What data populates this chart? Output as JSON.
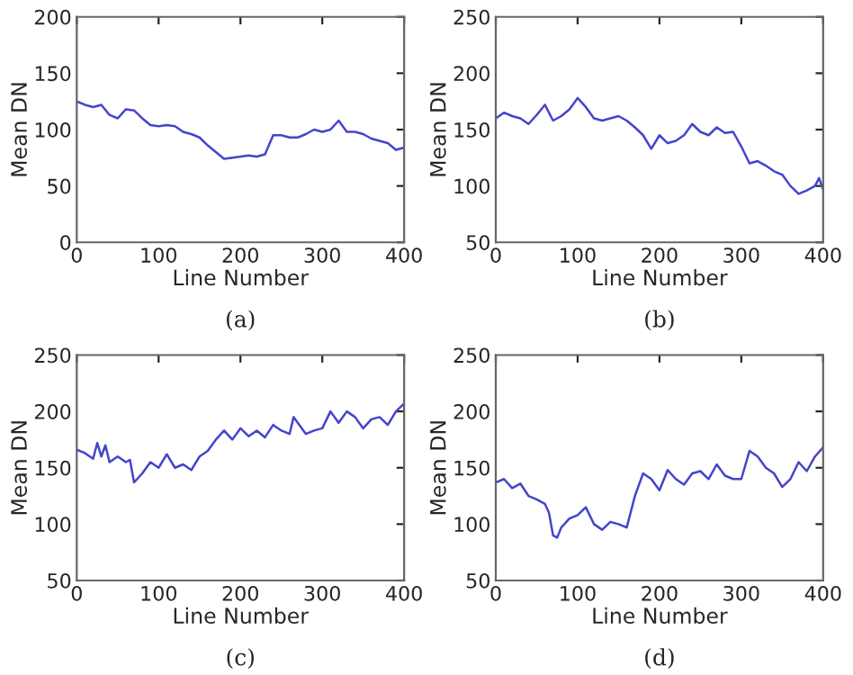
{
  "chart_data": [
    {
      "type": "line",
      "xlabel": "Line Number",
      "ylabel": "Mean DN",
      "annotations": [
        "(a)"
      ],
      "xlim": [
        0,
        400
      ],
      "xticks": [
        0,
        100,
        200,
        300,
        400
      ],
      "ylim": [
        0,
        200
      ],
      "yticks": [
        0,
        50,
        100,
        150,
        200
      ],
      "grid": false,
      "series": [
        {
          "color": "#4444cc",
          "x": [
            0,
            10,
            20,
            30,
            40,
            50,
            60,
            70,
            80,
            90,
            100,
            110,
            120,
            130,
            140,
            150,
            160,
            170,
            180,
            190,
            200,
            210,
            220,
            230,
            240,
            250,
            260,
            270,
            280,
            290,
            300,
            310,
            320,
            330,
            340,
            350,
            360,
            370,
            380,
            390,
            400
          ],
          "values": [
            125,
            122,
            120,
            122,
            113,
            110,
            118,
            117,
            110,
            104,
            103,
            104,
            103,
            98,
            96,
            93,
            86,
            80,
            74,
            75,
            76,
            77,
            76,
            78,
            95,
            95,
            93,
            93,
            96,
            100,
            98,
            100,
            108,
            98,
            98,
            96,
            92,
            90,
            88,
            82,
            84
          ]
        }
      ]
    },
    {
      "type": "line",
      "xlabel": "Line Number",
      "ylabel": "Mean DN",
      "annotations": [
        "(b)"
      ],
      "xlim": [
        0,
        400
      ],
      "xticks": [
        0,
        100,
        200,
        300,
        400
      ],
      "ylim": [
        50,
        250
      ],
      "yticks": [
        50,
        100,
        150,
        200,
        250
      ],
      "grid": false,
      "series": [
        {
          "color": "#4444cc",
          "x": [
            0,
            10,
            20,
            30,
            40,
            50,
            60,
            70,
            80,
            90,
            100,
            110,
            120,
            130,
            140,
            150,
            160,
            170,
            180,
            190,
            200,
            210,
            220,
            230,
            240,
            250,
            260,
            270,
            280,
            290,
            300,
            310,
            320,
            330,
            340,
            350,
            360,
            370,
            380,
            390,
            395,
            400
          ],
          "values": [
            160,
            165,
            162,
            160,
            155,
            163,
            172,
            158,
            162,
            168,
            178,
            170,
            160,
            158,
            160,
            162,
            158,
            152,
            145,
            133,
            145,
            138,
            140,
            145,
            155,
            148,
            145,
            152,
            147,
            148,
            135,
            120,
            122,
            118,
            113,
            110,
            100,
            93,
            96,
            100,
            107,
            97
          ]
        }
      ]
    },
    {
      "type": "line",
      "xlabel": "Line Number",
      "ylabel": "Mean DN",
      "annotations": [
        "(c)"
      ],
      "xlim": [
        0,
        400
      ],
      "xticks": [
        0,
        100,
        200,
        300,
        400
      ],
      "ylim": [
        50,
        250
      ],
      "yticks": [
        50,
        100,
        150,
        200,
        250
      ],
      "grid": false,
      "series": [
        {
          "color": "#4444cc",
          "x": [
            0,
            10,
            20,
            25,
            30,
            35,
            40,
            50,
            60,
            65,
            70,
            80,
            90,
            100,
            110,
            120,
            130,
            140,
            150,
            160,
            170,
            180,
            190,
            200,
            210,
            220,
            230,
            240,
            250,
            260,
            265,
            270,
            280,
            290,
            300,
            310,
            320,
            330,
            340,
            350,
            360,
            370,
            380,
            390,
            400
          ],
          "values": [
            166,
            163,
            158,
            172,
            160,
            170,
            155,
            160,
            155,
            157,
            137,
            145,
            155,
            150,
            162,
            150,
            153,
            148,
            160,
            165,
            175,
            183,
            175,
            185,
            178,
            183,
            177,
            188,
            183,
            180,
            195,
            190,
            180,
            183,
            185,
            200,
            190,
            200,
            195,
            185,
            193,
            195,
            188,
            200,
            207
          ]
        }
      ]
    },
    {
      "type": "line",
      "xlabel": "Line Number",
      "ylabel": "Mean DN",
      "annotations": [
        "(d)"
      ],
      "xlim": [
        0,
        400
      ],
      "xticks": [
        0,
        100,
        200,
        300,
        400
      ],
      "ylim": [
        50,
        250
      ],
      "yticks": [
        50,
        100,
        150,
        200,
        250
      ],
      "grid": false,
      "series": [
        {
          "color": "#4444cc",
          "x": [
            0,
            10,
            20,
            30,
            40,
            50,
            60,
            65,
            70,
            75,
            80,
            90,
            100,
            110,
            120,
            130,
            140,
            150,
            160,
            170,
            180,
            190,
            200,
            210,
            220,
            230,
            240,
            250,
            260,
            270,
            280,
            290,
            300,
            310,
            320,
            330,
            340,
            350,
            360,
            370,
            380,
            390,
            400
          ],
          "values": [
            137,
            140,
            132,
            136,
            125,
            122,
            118,
            110,
            90,
            88,
            97,
            105,
            108,
            115,
            100,
            95,
            102,
            100,
            97,
            125,
            145,
            140,
            130,
            148,
            140,
            135,
            145,
            147,
            140,
            153,
            143,
            140,
            140,
            165,
            160,
            150,
            145,
            133,
            140,
            155,
            147,
            160,
            168
          ]
        }
      ]
    }
  ]
}
